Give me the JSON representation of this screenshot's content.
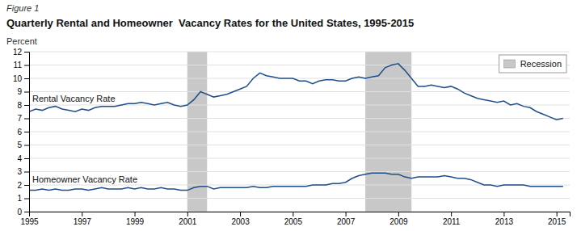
{
  "chart_data": {
    "type": "line",
    "title": "Quarterly Rental and Homeowner  Vacancy Rates for the United States, 1995-2015",
    "subtitle": "Figure 1",
    "ylabel": "Percent",
    "x": [
      1995.0,
      1995.25,
      1995.5,
      1995.75,
      1996.0,
      1996.25,
      1996.5,
      1996.75,
      1997.0,
      1997.25,
      1997.5,
      1997.75,
      1998.0,
      1998.25,
      1998.5,
      1998.75,
      1999.0,
      1999.25,
      1999.5,
      1999.75,
      2000.0,
      2000.25,
      2000.5,
      2000.75,
      2001.0,
      2001.25,
      2001.5,
      2001.75,
      2002.0,
      2002.25,
      2002.5,
      2002.75,
      2003.0,
      2003.25,
      2003.5,
      2003.75,
      2004.0,
      2004.25,
      2004.5,
      2004.75,
      2005.0,
      2005.25,
      2005.5,
      2005.75,
      2006.0,
      2006.25,
      2006.5,
      2006.75,
      2007.0,
      2007.25,
      2007.5,
      2007.75,
      2008.0,
      2008.25,
      2008.5,
      2008.75,
      2009.0,
      2009.25,
      2009.5,
      2009.75,
      2010.0,
      2010.25,
      2010.5,
      2010.75,
      2011.0,
      2011.25,
      2011.5,
      2011.75,
      2012.0,
      2012.25,
      2012.5,
      2012.75,
      2013.0,
      2013.25,
      2013.5,
      2013.75,
      2014.0,
      2014.25,
      2014.5,
      2014.75,
      2015.0,
      2015.25
    ],
    "series": [
      {
        "name": "Rental Vacancy Rate",
        "color": "#1f4e8c",
        "values": [
          7.5,
          7.7,
          7.6,
          7.8,
          7.9,
          7.7,
          7.6,
          7.5,
          7.7,
          7.6,
          7.8,
          7.9,
          7.9,
          7.9,
          8.0,
          8.1,
          8.1,
          8.2,
          8.1,
          8.0,
          8.1,
          8.2,
          8.0,
          7.9,
          8.0,
          8.4,
          9.0,
          8.8,
          8.6,
          8.7,
          8.8,
          9.0,
          9.2,
          9.4,
          10.0,
          10.4,
          10.2,
          10.1,
          10.0,
          10.0,
          10.0,
          9.8,
          9.8,
          9.6,
          9.8,
          9.9,
          9.9,
          9.8,
          9.8,
          10.0,
          10.1,
          10.0,
          10.1,
          10.2,
          10.8,
          11.0,
          11.1,
          10.6,
          10.0,
          9.4,
          9.4,
          9.5,
          9.4,
          9.3,
          9.4,
          9.2,
          8.9,
          8.7,
          8.5,
          8.4,
          8.3,
          8.2,
          8.3,
          8.0,
          8.1,
          7.9,
          7.8,
          7.5,
          7.3,
          7.1,
          6.9,
          7.0
        ]
      },
      {
        "name": "Homeowner Vacancy Rate",
        "color": "#1f4e8c",
        "values": [
          1.6,
          1.6,
          1.7,
          1.6,
          1.7,
          1.6,
          1.6,
          1.7,
          1.7,
          1.6,
          1.7,
          1.8,
          1.7,
          1.7,
          1.7,
          1.8,
          1.7,
          1.8,
          1.7,
          1.7,
          1.8,
          1.7,
          1.7,
          1.6,
          1.6,
          1.8,
          1.9,
          1.9,
          1.7,
          1.8,
          1.8,
          1.8,
          1.8,
          1.8,
          1.9,
          1.8,
          1.8,
          1.9,
          1.9,
          1.9,
          1.9,
          1.9,
          1.9,
          2.0,
          2.0,
          2.0,
          2.1,
          2.1,
          2.2,
          2.5,
          2.7,
          2.8,
          2.9,
          2.9,
          2.9,
          2.8,
          2.8,
          2.6,
          2.5,
          2.6,
          2.6,
          2.6,
          2.6,
          2.7,
          2.6,
          2.5,
          2.5,
          2.4,
          2.2,
          2.0,
          2.0,
          1.9,
          2.0,
          2.0,
          2.0,
          2.0,
          1.9,
          1.9,
          1.9,
          1.9,
          1.9,
          1.9
        ]
      }
    ],
    "recessions": {
      "name": "Recession",
      "color": "#c8c8c8",
      "periods": [
        [
          2001.0,
          2001.75
        ],
        [
          2007.75,
          2009.5
        ]
      ]
    },
    "xlim": [
      1995,
      2015.5
    ],
    "xticks": [
      1995,
      1997,
      1999,
      2001,
      2003,
      2005,
      2007,
      2009,
      2011,
      2013,
      2015
    ],
    "ylim": [
      0,
      12
    ],
    "yticks": [
      0,
      1,
      2,
      3,
      4,
      5,
      6,
      7,
      8,
      9,
      10,
      11,
      12
    ],
    "grid": true,
    "legend": "top-right"
  }
}
